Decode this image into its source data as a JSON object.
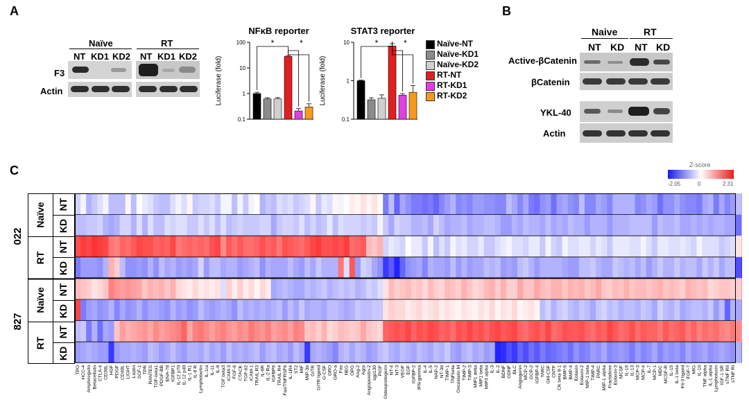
{
  "panelA": {
    "letter": "A",
    "blot": {
      "group_naive": "Naïve",
      "group_rt": "RT",
      "lanes_naive": [
        "NT",
        "KD1",
        "KD2"
      ],
      "lanes_rt": [
        "NT",
        "KD1",
        "KD2"
      ],
      "row_f3": "F3",
      "row_actin": "Actin"
    },
    "charts": [
      {
        "type": "bar",
        "title": "NFκB reporter",
        "ylabel": "Luciferase (fold)",
        "yscale": "log",
        "ylim": [
          0.1,
          100
        ],
        "yticks": [
          "0.1",
          "1",
          "10",
          "100"
        ],
        "categories": [
          "Naïve-NT",
          "Naïve-KD1",
          "Naïve-KD2",
          "RT-NT",
          "RT-KD1",
          "RT-KD2"
        ],
        "values": [
          1.0,
          0.62,
          0.62,
          28,
          0.21,
          0.3
        ],
        "errors": [
          0.12,
          0.07,
          0.08,
          2.5,
          0.05,
          0.1
        ],
        "colors": [
          "#000000",
          "#8c8c8c",
          "#cfcfcf",
          "#e02020",
          "#e040e0",
          "#f59a1a"
        ],
        "significance": "*"
      },
      {
        "type": "bar",
        "title": "STAT3 reporter",
        "ylabel": "Luciferase (fold)",
        "yscale": "log",
        "ylim": [
          0.1,
          10
        ],
        "yticks": [
          "0.1",
          "1",
          "10"
        ],
        "categories": [
          "Naïve-NT",
          "Naïve-KD1",
          "Naïve-KD2",
          "RT-NT",
          "RT-KD1",
          "RT-KD2"
        ],
        "values": [
          1.0,
          0.32,
          0.35,
          8.0,
          0.42,
          0.5
        ],
        "errors": [
          0.04,
          0.04,
          0.08,
          1.2,
          0.04,
          0.25
        ],
        "colors": [
          "#000000",
          "#8c8c8c",
          "#cfcfcf",
          "#e02020",
          "#e040e0",
          "#f59a1a"
        ],
        "significance": "*"
      }
    ],
    "legend": [
      {
        "label": "Naïve-NT",
        "color": "#000000"
      },
      {
        "label": "Naïve-KD1",
        "color": "#8c8c8c"
      },
      {
        "label": "Naïve-KD2",
        "color": "#cfcfcf"
      },
      {
        "label": "RT-NT",
        "color": "#e02020"
      },
      {
        "label": "RT-KD1",
        "color": "#e040e0"
      },
      {
        "label": "RT-KD2",
        "color": "#f59a1a"
      }
    ]
  },
  "panelB": {
    "letter": "B",
    "group_naive": "Naive",
    "group_rt": "RT",
    "lanes": [
      "NT",
      "KD",
      "NT",
      "KD"
    ],
    "rows": [
      "Active-βCatenin",
      "βCatenin",
      "YKL-40",
      "Actin"
    ]
  },
  "panelC": {
    "letter": "C",
    "colorbar": {
      "title": "Z-score",
      "min": "-2.05",
      "mid": "0",
      "max": "2.31"
    },
    "groups": [
      {
        "name": "022",
        "conditions": [
          {
            "name": "Naïve",
            "rows": [
              "NT",
              "KD"
            ]
          },
          {
            "name": "RT",
            "rows": [
              "NT",
              "KD"
            ]
          }
        ]
      },
      {
        "name": "827",
        "conditions": [
          {
            "name": "Naïve",
            "rows": [
              "NT",
              "KD"
            ]
          },
          {
            "name": "RT",
            "rows": [
              "NT",
              "KD"
            ]
          }
        ]
      }
    ],
    "labels": [
      "TPO",
      "HCC-4",
      "Amphiregulin",
      "Betacellulin",
      "CTLA-4",
      "CD30L",
      "HGF",
      "PDGF",
      "CD40L",
      "LIGHT",
      "Leptin",
      "SCF-1",
      "TPR",
      "RANTES",
      "TGF-beta1",
      "PDGF-BB",
      "ENA-78",
      "IGFBP1",
      "IL-12 p70",
      "IL-12 p40",
      "IL-1 R1",
      "IL-6 R",
      "Lymphotactin",
      "IL-1ra",
      "IL-11",
      "IL-8",
      "TGF beta3",
      "ICAM-3",
      "FGF-6",
      "CTACK",
      "TGF-b2",
      "ICAM-1",
      "TRAIL R3",
      "IL-6R",
      "IL-2 Ra",
      "IGFBP6",
      "TRAIL R4",
      "Fas/TNFRSF6",
      "IL-1R4",
      "ST2",
      "MIF",
      "MIP-3b",
      "GITR",
      "GITR ligand",
      "G-CSF",
      "GRO",
      "GRO-a",
      "Fas",
      "NEG",
      "OPG",
      "Ang-2",
      "Agrp",
      "Angiopoietin-2",
      "sgp130",
      "PIGF",
      "Osteoprotegerin",
      "NT-4",
      "NT-3",
      "VEGF",
      "EGF",
      "IGFBP-2",
      "IFN-gamma",
      "IL-4",
      "IL-5",
      "NAP-2",
      "NT-3b",
      "TIMP-1",
      "TNFbeta",
      "Oncostatin M",
      "TIMP-2",
      "TIMP-3",
      "MIP1 delta",
      "MIP1 beta",
      "MIP3 alpha",
      "IL-3",
      "IL-2",
      "BDNF",
      "GDNF",
      "BLC",
      "Angiogenin",
      "MCP-2",
      "GCP-2",
      "IGFBP-4",
      "TARC",
      "GM-CSF",
      "CNTF",
      "CK beta 8-1",
      "BMP-6",
      "BMP-4",
      "Eotaxin",
      "Eotaxin-2",
      "MIP-1 beta",
      "TIMP-4",
      "PARC",
      "MIP-1 alpha",
      "Fractalkine",
      "Eotaxin-3",
      "MCSF",
      "IL-16",
      "IL-13",
      "MCP-3",
      "MCP-4",
      "IL-7",
      "MCP-1",
      "MDC",
      "MCSF-R",
      "IL-15",
      "IL-1 beta",
      "Fit-3 ligand",
      "FGF-7",
      "MIG",
      "IL-10",
      "TNF alpha",
      "IL-1 alpha",
      "Lymphotoxin",
      "IGF-1 SR",
      "sTNF RII",
      "sTNF RI"
    ],
    "zscores": [
      [
        -0.4,
        -0.1,
        -0.7,
        -0.5,
        -0.3,
        -0.1,
        -0.6,
        -0.6,
        -0.6,
        0.1,
        -0.6,
        0.0,
        -0.2,
        -0.3,
        -0.5,
        -0.6,
        -0.6,
        -0.3,
        -0.1,
        -0.3,
        0.1,
        -0.5,
        -0.4,
        -0.4,
        -0.3,
        -0.5,
        -0.1,
        -0.1,
        -0.6,
        -0.1,
        -0.5,
        -0.1,
        0.0,
        -0.7,
        -0.5,
        -0.6,
        -0.3,
        -0.4,
        -0.3,
        -0.5,
        -0.4,
        -0.3,
        0.1,
        -0.5,
        -0.2,
        -0.3,
        0.1,
        -0.1,
        0.0,
        0.2,
        0.1,
        0.3,
        0.1,
        0.3,
        0.0,
        -1.2,
        -0.6,
        -1.4,
        -0.8,
        -1.0,
        -1.2,
        -1.2,
        -1.3,
        -1.2,
        -1.4,
        -1.1,
        -0.9,
        -0.7,
        -1.1,
        -1.0,
        -1.1,
        -0.9,
        -0.9,
        -1.0,
        -1.0,
        -1.1,
        -1.1,
        -0.6,
        -0.8,
        -1.1,
        -0.8,
        -1.2,
        -1.3,
        -1.0,
        -0.9,
        -1.3,
        -0.9,
        -0.8,
        -1.0,
        -1.1,
        -0.6,
        -1.1,
        -1.1,
        -0.8,
        -0.9,
        -1.1,
        -0.7,
        -0.7,
        -0.7,
        -0.7,
        -1.1,
        -1.0,
        -0.8,
        -0.9,
        -1.3,
        -1.0,
        -1.0,
        -0.8,
        -1.0,
        -1.1,
        -1.1,
        -1.2,
        -0.8,
        -0.7,
        -1.2,
        -0.8,
        -1.1,
        -0.9,
        -0.6,
        -0.7,
        -0.4
      ],
      [
        -0.6,
        -0.6,
        -0.5,
        -0.5,
        -0.4,
        -0.7,
        -0.8,
        -0.7,
        -0.4,
        -0.4,
        -0.7,
        -0.3,
        -0.7,
        -0.3,
        -0.6,
        -0.6,
        -0.3,
        -0.4,
        -0.3,
        -0.3,
        -0.5,
        -0.5,
        -0.3,
        -0.5,
        -0.3,
        -0.6,
        -0.3,
        -0.6,
        -0.5,
        -0.4,
        -0.5,
        -0.5,
        -0.5,
        -0.4,
        -0.4,
        -0.8,
        -0.5,
        -0.4,
        -0.4,
        -0.5,
        -0.3,
        -0.6,
        -0.4,
        -0.6,
        -0.5,
        -0.2,
        -0.6,
        -0.3,
        -0.4,
        -0.4,
        -0.4,
        -0.5,
        -0.4,
        -0.5,
        -0.1,
        -0.5,
        -0.8,
        -0.4,
        -0.5,
        -0.5,
        -0.7,
        -0.7,
        -0.6,
        -0.8,
        -0.4,
        -0.6,
        -0.8,
        -0.7,
        -0.7,
        -0.6,
        -0.8,
        -0.7,
        -0.7,
        -0.6,
        -0.6,
        -0.7,
        -0.9,
        -0.9,
        -0.7,
        -0.8,
        -0.6,
        -0.7,
        -0.7,
        -0.8,
        -0.6,
        -0.8,
        -0.7,
        -0.8,
        -0.6,
        -0.7,
        -0.7,
        -0.9,
        -0.7,
        -0.7,
        -0.7,
        -0.9,
        -0.7,
        -0.7,
        -0.7,
        -0.6,
        -0.6,
        -0.6,
        -0.6,
        -0.9,
        -0.6,
        -0.7,
        -0.7,
        -0.6,
        -0.8,
        -0.8,
        -0.7,
        -0.8,
        -0.7,
        -0.8,
        -0.7,
        -0.7,
        -0.8,
        -0.8,
        -1.3,
        -0.6,
        -0.5
      ],
      [
        1.8,
        2.0,
        1.9,
        2.1,
        2.0,
        1.9,
        1.4,
        1.3,
        1.6,
        1.5,
        1.7,
        1.9,
        1.8,
        1.8,
        1.6,
        1.7,
        1.6,
        1.9,
        1.4,
        1.5,
        1.6,
        1.5,
        1.6,
        1.5,
        1.8,
        1.9,
        1.2,
        1.7,
        1.5,
        1.7,
        1.5,
        1.5,
        1.6,
        1.8,
        1.6,
        1.7,
        1.4,
        1.8,
        1.7,
        1.6,
        1.5,
        1.7,
        1.9,
        2.0,
        1.8,
        1.8,
        1.9,
        1.8,
        2.0,
        1.5,
        1.6,
        1.7,
        0.7,
        0.6,
        0.8,
        -0.4,
        -0.2,
        -0.3,
        -0.4,
        0.0,
        -0.2,
        -0.2,
        -0.5,
        -0.1,
        -0.6,
        -0.3,
        -0.5,
        -0.1,
        -0.3,
        -0.2,
        -0.4,
        -0.4,
        -0.2,
        -0.5,
        -0.5,
        -0.3,
        -0.2,
        -0.1,
        -0.3,
        -0.3,
        -0.4,
        -0.2,
        -0.2,
        -0.5,
        -0.1,
        -0.4,
        -0.5,
        -0.1,
        -0.3,
        -0.3,
        -0.2,
        -0.2,
        -0.4,
        -0.2,
        -0.3,
        -0.5,
        -0.2,
        -0.2,
        -0.2,
        -0.3,
        -0.3,
        -0.1,
        -0.3,
        -0.5,
        -0.2,
        -0.2,
        -0.3,
        -0.3,
        -0.2,
        -0.3,
        -0.4,
        -0.1,
        -0.3,
        -0.3,
        -0.3,
        -0.5,
        -0.4,
        -0.3,
        0.3,
        0.8,
        1.5
      ],
      [
        -1.2,
        -0.9,
        -0.9,
        -0.9,
        -1.0,
        -0.7,
        0.8,
        0.5,
        -0.6,
        -1.0,
        -1.0,
        -0.9,
        -1.0,
        -0.7,
        -1.0,
        -0.6,
        -0.8,
        -0.7,
        -0.9,
        -0.8,
        -0.9,
        -0.8,
        -0.4,
        -0.9,
        -0.6,
        -0.6,
        -0.8,
        -0.7,
        -0.7,
        -0.9,
        -0.8,
        -0.7,
        -0.6,
        -1.0,
        -0.7,
        -0.8,
        -0.8,
        -0.8,
        -0.6,
        -0.8,
        -0.9,
        -0.6,
        -0.8,
        -0.5,
        -0.7,
        -0.7,
        -0.7,
        1.4,
        -0.3,
        1.7,
        -0.9,
        -0.4,
        -0.5,
        -0.8,
        -1.0,
        -1.8,
        -1.5,
        -2.0,
        -1.4,
        -1.0,
        -0.9,
        -0.8,
        -1.1,
        -0.7,
        -0.8,
        -0.8,
        -0.9,
        -0.6,
        -0.9,
        -0.7,
        -0.9,
        -0.8,
        -0.8,
        -0.6,
        -0.7,
        -0.6,
        -0.9,
        -0.8,
        -0.9,
        -0.6,
        -0.5,
        -0.7,
        -0.9,
        -0.7,
        -0.7,
        -0.7,
        -0.7,
        -0.8,
        -0.9,
        -0.9,
        -0.6,
        -0.6,
        -0.5,
        -0.7,
        -0.8,
        -0.8,
        -0.5,
        -0.6,
        -0.7,
        -0.6,
        -0.8,
        -0.6,
        -0.9,
        -0.7,
        -0.5,
        -0.7,
        -0.7,
        -0.5,
        -0.7,
        -0.6,
        -0.6,
        -0.8,
        -0.5,
        -0.7,
        -0.5,
        -0.8,
        -0.6,
        -0.6,
        -1.6,
        -1.9,
        -1.2
      ],
      [
        0.7,
        0.6,
        0.5,
        0.3,
        0.4,
        0.6,
        1.3,
        1.1,
        1.0,
        1.1,
        1.0,
        0.9,
        0.6,
        0.8,
        0.7,
        0.8,
        0.6,
        0.8,
        0.4,
        0.3,
        0.2,
        0.4,
        0.2,
        0.3,
        0.2,
        0.3,
        -0.3,
        0.5,
        0.2,
        0.5,
        0.2,
        0.4,
        0.1,
        0.4,
        0.2,
        -0.8,
        -0.7,
        -0.6,
        -0.7,
        -0.8,
        -0.8,
        -0.6,
        -0.7,
        -0.6,
        -0.5,
        -0.7,
        -0.6,
        -0.5,
        -0.6,
        -0.5,
        -0.7,
        -0.6,
        -0.4,
        -0.5,
        -0.3,
        0.3,
        0.7,
        0.5,
        0.6,
        0.7,
        0.5,
        0.6,
        0.4,
        0.7,
        0.5,
        0.4,
        0.7,
        0.6,
        0.5,
        0.8,
        0.6,
        0.4,
        0.5,
        0.7,
        0.8,
        0.5,
        0.8,
        0.5,
        0.5,
        0.9,
        0.6,
        0.6,
        0.9,
        0.7,
        0.6,
        0.8,
        0.8,
        0.6,
        0.8,
        0.7,
        0.8,
        0.6,
        0.7,
        0.9,
        0.6,
        0.5,
        0.7,
        0.6,
        0.8,
        0.6,
        0.7,
        0.7,
        0.6,
        0.7,
        0.8,
        0.6,
        0.7,
        0.6,
        0.5,
        0.8,
        0.7,
        0.6,
        0.7,
        0.4,
        0.5,
        0.6,
        0.6,
        0.5,
        0.5,
        1.2,
        0.3
      ],
      [
        1.9,
        -1.2,
        -0.9,
        -0.8,
        -1.0,
        -0.9,
        -0.7,
        -1.1,
        -0.8,
        -1.0,
        -0.9,
        -0.7,
        -1.0,
        -0.8,
        -0.8,
        -0.9,
        -1.0,
        -0.7,
        -0.9,
        -0.8,
        -1.0,
        -0.9,
        -0.6,
        -0.8,
        -0.9,
        -0.8,
        -0.7,
        -0.8,
        -1.0,
        -0.6,
        -0.8,
        -0.7,
        -0.8,
        -0.7,
        -0.8,
        -0.7,
        -0.6,
        -0.9,
        -0.6,
        -0.8,
        -0.5,
        -0.8,
        -0.7,
        -0.7,
        -0.8,
        -0.6,
        -0.6,
        -0.7,
        -0.8,
        -0.7,
        -0.5,
        -0.6,
        -0.6,
        -0.5,
        -0.5,
        0.3,
        0.5,
        0.4,
        0.4,
        0.2,
        0.3,
        0.4,
        0.2,
        0.3,
        0.4,
        0.2,
        0.3,
        0.2,
        0.1,
        0.3,
        0.2,
        0.1,
        0.3,
        0.2,
        0.4,
        0.1,
        0.3,
        0.2,
        0.4,
        0.1,
        0.2,
        0.3,
        0.1,
        -0.6,
        -0.4,
        -0.7,
        -0.5,
        -0.4,
        -0.6,
        -0.7,
        -0.5,
        -0.6,
        -0.8,
        -0.5,
        -0.4,
        -0.6,
        -0.5,
        -0.7,
        -0.6,
        -0.6,
        -0.7,
        -0.5,
        -0.6,
        -0.8,
        -0.4,
        -0.6,
        -0.7,
        -0.5,
        -0.8,
        -0.7,
        -0.6,
        -0.6,
        -0.7,
        -0.5,
        -0.9,
        -0.6,
        -1.4,
        -0.7,
        -0.8,
        -1.0,
        -0.5
      ],
      [
        -0.6,
        -0.5,
        -1.2,
        -0.7,
        -1.3,
        -0.8,
        -0.9,
        0.6,
        1.0,
        0.8,
        0.9,
        1.0,
        1.1,
        0.9,
        1.2,
        1.0,
        1.1,
        1.2,
        1.3,
        1.6,
        0.9,
        1.3,
        1.4,
        1.2,
        1.0,
        1.2,
        1.3,
        1.1,
        1.0,
        1.2,
        1.1,
        1.4,
        1.2,
        1.1,
        1.3,
        1.0,
        1.1,
        1.2,
        1.0,
        1.3,
        1.2,
        0.6,
        0.7,
        0.5,
        0.8,
        0.4,
        0.5,
        0.7,
        0.6,
        0.5,
        0.6,
        0.9,
        0.6,
        0.5,
        0.4,
        1.6,
        1.7,
        1.8,
        1.7,
        1.9,
        1.6,
        1.8,
        1.7,
        1.9,
        1.8,
        1.6,
        1.7,
        1.5,
        1.8,
        1.7,
        1.9,
        1.7,
        1.8,
        1.6,
        1.8,
        1.9,
        1.7,
        1.8,
        1.9,
        1.6,
        1.5,
        1.7,
        1.8,
        1.6,
        1.9,
        1.5,
        1.6,
        1.8,
        1.7,
        1.7,
        1.8,
        1.6,
        1.5,
        1.7,
        1.6,
        1.9,
        1.7,
        1.5,
        1.6,
        1.8,
        1.5,
        1.7,
        1.6,
        1.6,
        1.4,
        1.7,
        1.5,
        1.6,
        1.7,
        1.4,
        1.6,
        1.3,
        1.5,
        1.4,
        1.5,
        1.3,
        1.2,
        1.4,
        1.2,
        0.9,
        0.6
      ],
      [
        -0.9,
        -0.8,
        -0.7,
        -0.8,
        -0.9,
        -0.9,
        -1.8,
        -0.9,
        -0.8,
        -0.8,
        -0.7,
        -0.8,
        -0.9,
        -0.6,
        -0.7,
        -0.9,
        -0.8,
        -0.6,
        -0.8,
        -0.9,
        -0.7,
        -0.7,
        -0.8,
        -0.6,
        -0.8,
        -0.7,
        -0.9,
        -0.6,
        -0.8,
        -0.7,
        -0.8,
        -0.7,
        -0.6,
        -0.9,
        -0.7,
        -0.6,
        -0.8,
        -0.7,
        -0.9,
        -0.6,
        -0.8,
        -1.8,
        -0.8,
        -0.7,
        -0.8,
        -0.9,
        -1.1,
        -0.7,
        -0.6,
        -0.8,
        -0.6,
        -0.7,
        -0.9,
        -0.8,
        -0.6,
        -0.5,
        -0.7,
        -0.8,
        -0.6,
        -0.7,
        -0.8,
        -0.6,
        -0.7,
        -0.8,
        -0.6,
        -0.7,
        -0.5,
        -0.8,
        -0.9,
        -0.7,
        -0.6,
        -0.8,
        -0.7,
        -0.9,
        -0.8,
        -2.0,
        -1.9,
        -1.6,
        -1.8,
        -1.4,
        -1.6,
        -1.3,
        -1.5,
        -1.2,
        -1.4,
        -1.3,
        -1.2,
        -1.1,
        -1.3,
        -1.0,
        -1.2,
        -1.1,
        -0.9,
        -1.0,
        -0.8,
        -1.1,
        -1.0,
        -0.9,
        -1.0,
        -1.2,
        -0.9,
        -1.1,
        -1.0,
        -0.8,
        -1.1,
        -0.9,
        -1.0,
        -0.9,
        -1.1,
        -0.8,
        -1.0,
        -0.9,
        -0.8,
        -1.0,
        -0.9,
        -0.8,
        -0.9,
        -1.0,
        -0.7,
        -1.3,
        -0.6
      ]
    ]
  }
}
